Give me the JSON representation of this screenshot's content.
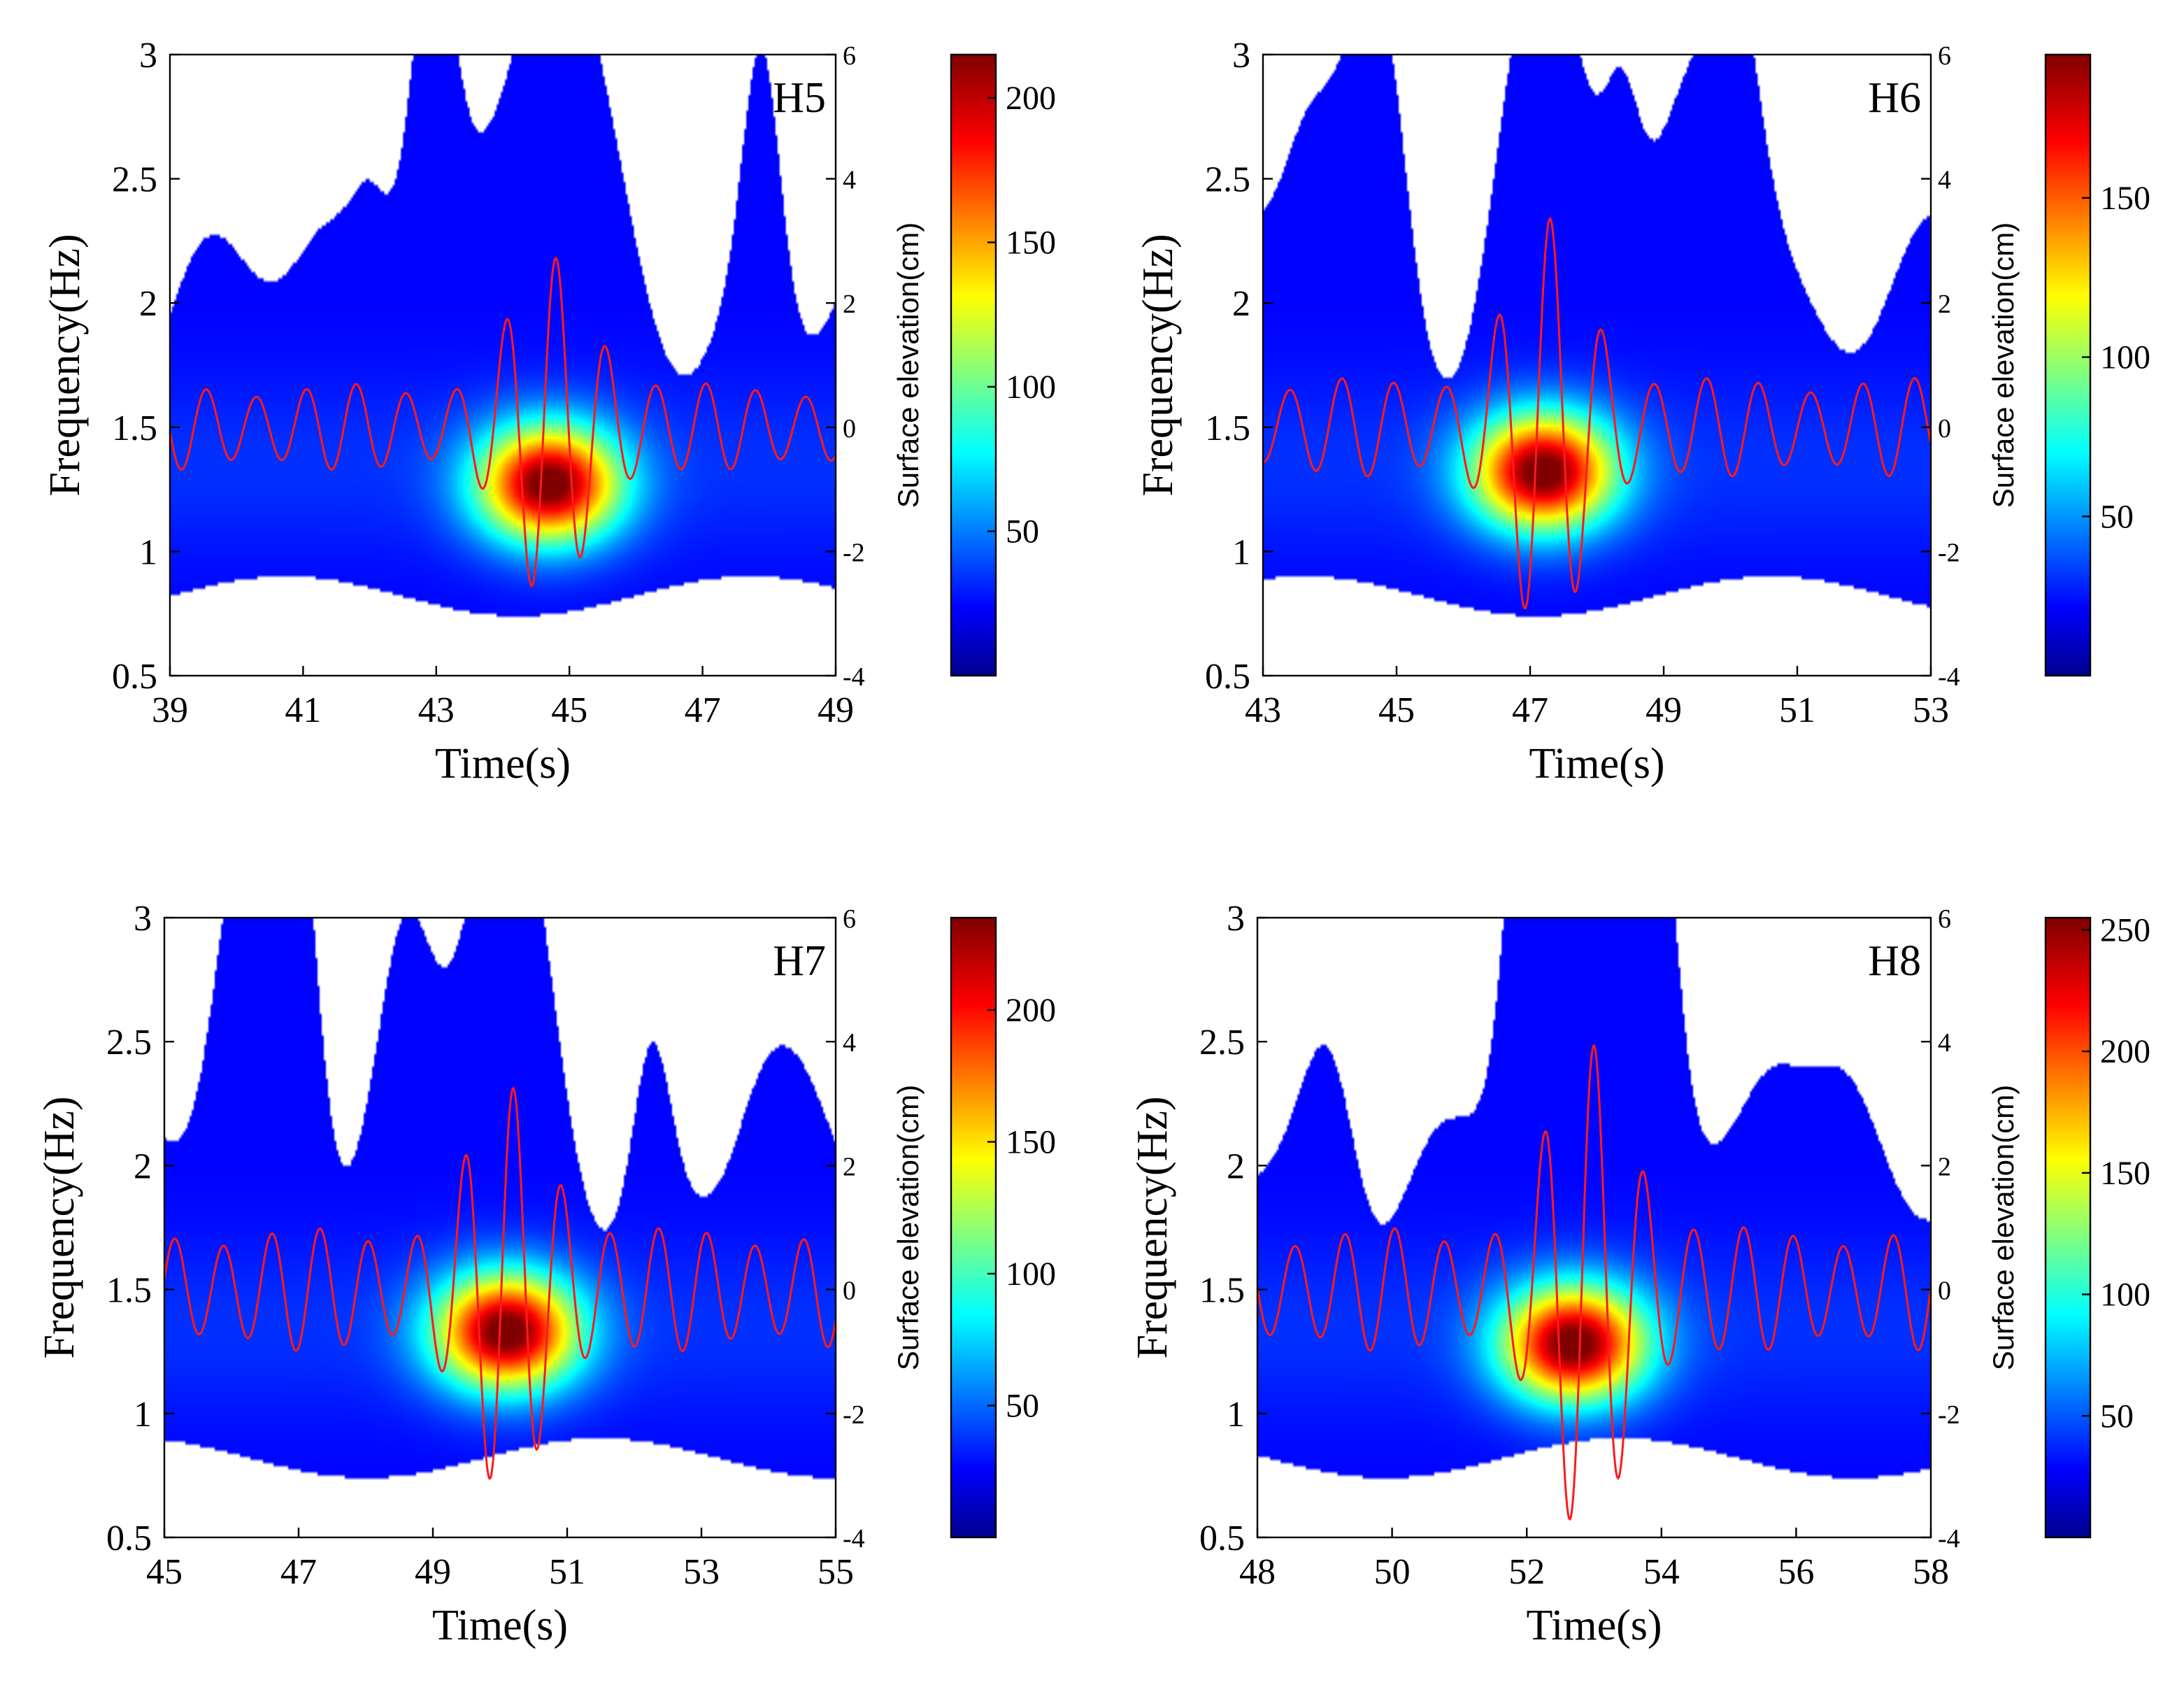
{
  "colors": {
    "signal": "#ff1a1a",
    "background": "#ffffff",
    "axis": "#000000",
    "colormap": "jet"
  },
  "chart_data": [
    {
      "type": "heatmap",
      "panel_label": "H5",
      "xlabel": "Time(s)",
      "ylabel": "Frequency(Hz)",
      "y2label": "Surface elevation(cm)",
      "xlim": [
        39,
        49
      ],
      "ylim": [
        0.5,
        3
      ],
      "y2lim": [
        -4,
        6
      ],
      "xticks": [
        "39",
        "41",
        "43",
        "45",
        "47",
        "49"
      ],
      "yticks": [
        "0.5",
        "1",
        "1.5",
        "2",
        "2.5",
        "3"
      ],
      "y2ticks": [
        "-4",
        "-2",
        "0",
        "2",
        "4",
        "6"
      ],
      "colorbar": {
        "min": 0,
        "max": 215,
        "ticks": [
          "50",
          "100",
          "150",
          "200"
        ]
      },
      "energy_peak": {
        "time": 44.7,
        "frequency": 1.27,
        "value": 215
      },
      "signal": {
        "mean_period_s": 0.75,
        "amplitude_cm": 0.7,
        "peak_amplitude_cm": 2.9,
        "focus_time_s": 44.8
      }
    },
    {
      "type": "heatmap",
      "panel_label": "H6",
      "xlabel": "Time(s)",
      "ylabel": "Frequency(Hz)",
      "y2label": "Surface elevation(cm)",
      "xlim": [
        43,
        53
      ],
      "ylim": [
        0.5,
        3
      ],
      "y2lim": [
        -4,
        6
      ],
      "xticks": [
        "43",
        "45",
        "47",
        "49",
        "51",
        "53"
      ],
      "yticks": [
        "0.5",
        "1",
        "1.5",
        "2",
        "2.5",
        "3"
      ],
      "y2ticks": [
        "-4",
        "-2",
        "0",
        "2",
        "4",
        "6"
      ],
      "colorbar": {
        "min": 0,
        "max": 195,
        "ticks": [
          "50",
          "100",
          "150"
        ]
      },
      "energy_peak": {
        "time": 47.2,
        "frequency": 1.32,
        "value": 195
      },
      "signal": {
        "mean_period_s": 0.78,
        "amplitude_cm": 0.8,
        "peak_amplitude_cm": 3.4,
        "focus_time_s": 47.3
      }
    },
    {
      "type": "heatmap",
      "panel_label": "H7",
      "xlabel": "Time(s)",
      "ylabel": "Frequency(Hz)",
      "y2label": "Surface elevation(cm)",
      "xlim": [
        45,
        55
      ],
      "ylim": [
        0.5,
        3
      ],
      "y2lim": [
        -4,
        6
      ],
      "xticks": [
        "45",
        "47",
        "49",
        "51",
        "53",
        "55"
      ],
      "yticks": [
        "0.5",
        "1",
        "1.5",
        "2",
        "2.5",
        "3"
      ],
      "y2ticks": [
        "-4",
        "-2",
        "0",
        "2",
        "4",
        "6"
      ],
      "colorbar": {
        "min": 0,
        "max": 235,
        "ticks": [
          "50",
          "100",
          "150",
          "200"
        ]
      },
      "energy_peak": {
        "time": 50.1,
        "frequency": 1.33,
        "value": 235
      },
      "signal": {
        "mean_period_s": 0.72,
        "amplitude_cm": 1.0,
        "peak_amplitude_cm": 3.4,
        "focus_time_s": 50.2
      }
    },
    {
      "type": "heatmap",
      "panel_label": "H8",
      "xlabel": "Time(s)",
      "ylabel": "Frequency(Hz)",
      "y2label": "Surface elevation(cm)",
      "xlim": [
        48,
        58
      ],
      "ylim": [
        0.5,
        3
      ],
      "y2lim": [
        -4,
        6
      ],
      "xticks": [
        "48",
        "50",
        "52",
        "54",
        "56",
        "58"
      ],
      "yticks": [
        "0.5",
        "1",
        "1.5",
        "2",
        "2.5",
        "3"
      ],
      "y2ticks": [
        "-4",
        "-2",
        "0",
        "2",
        "4",
        "6"
      ],
      "colorbar": {
        "min": 0,
        "max": 255,
        "ticks": [
          "50",
          "100",
          "150",
          "200",
          "250"
        ]
      },
      "energy_peak": {
        "time": 52.7,
        "frequency": 1.28,
        "value": 255
      },
      "signal": {
        "mean_period_s": 0.74,
        "amplitude_cm": 1.0,
        "peak_amplitude_cm": 4.2,
        "focus_time_s": 53.0
      }
    }
  ]
}
